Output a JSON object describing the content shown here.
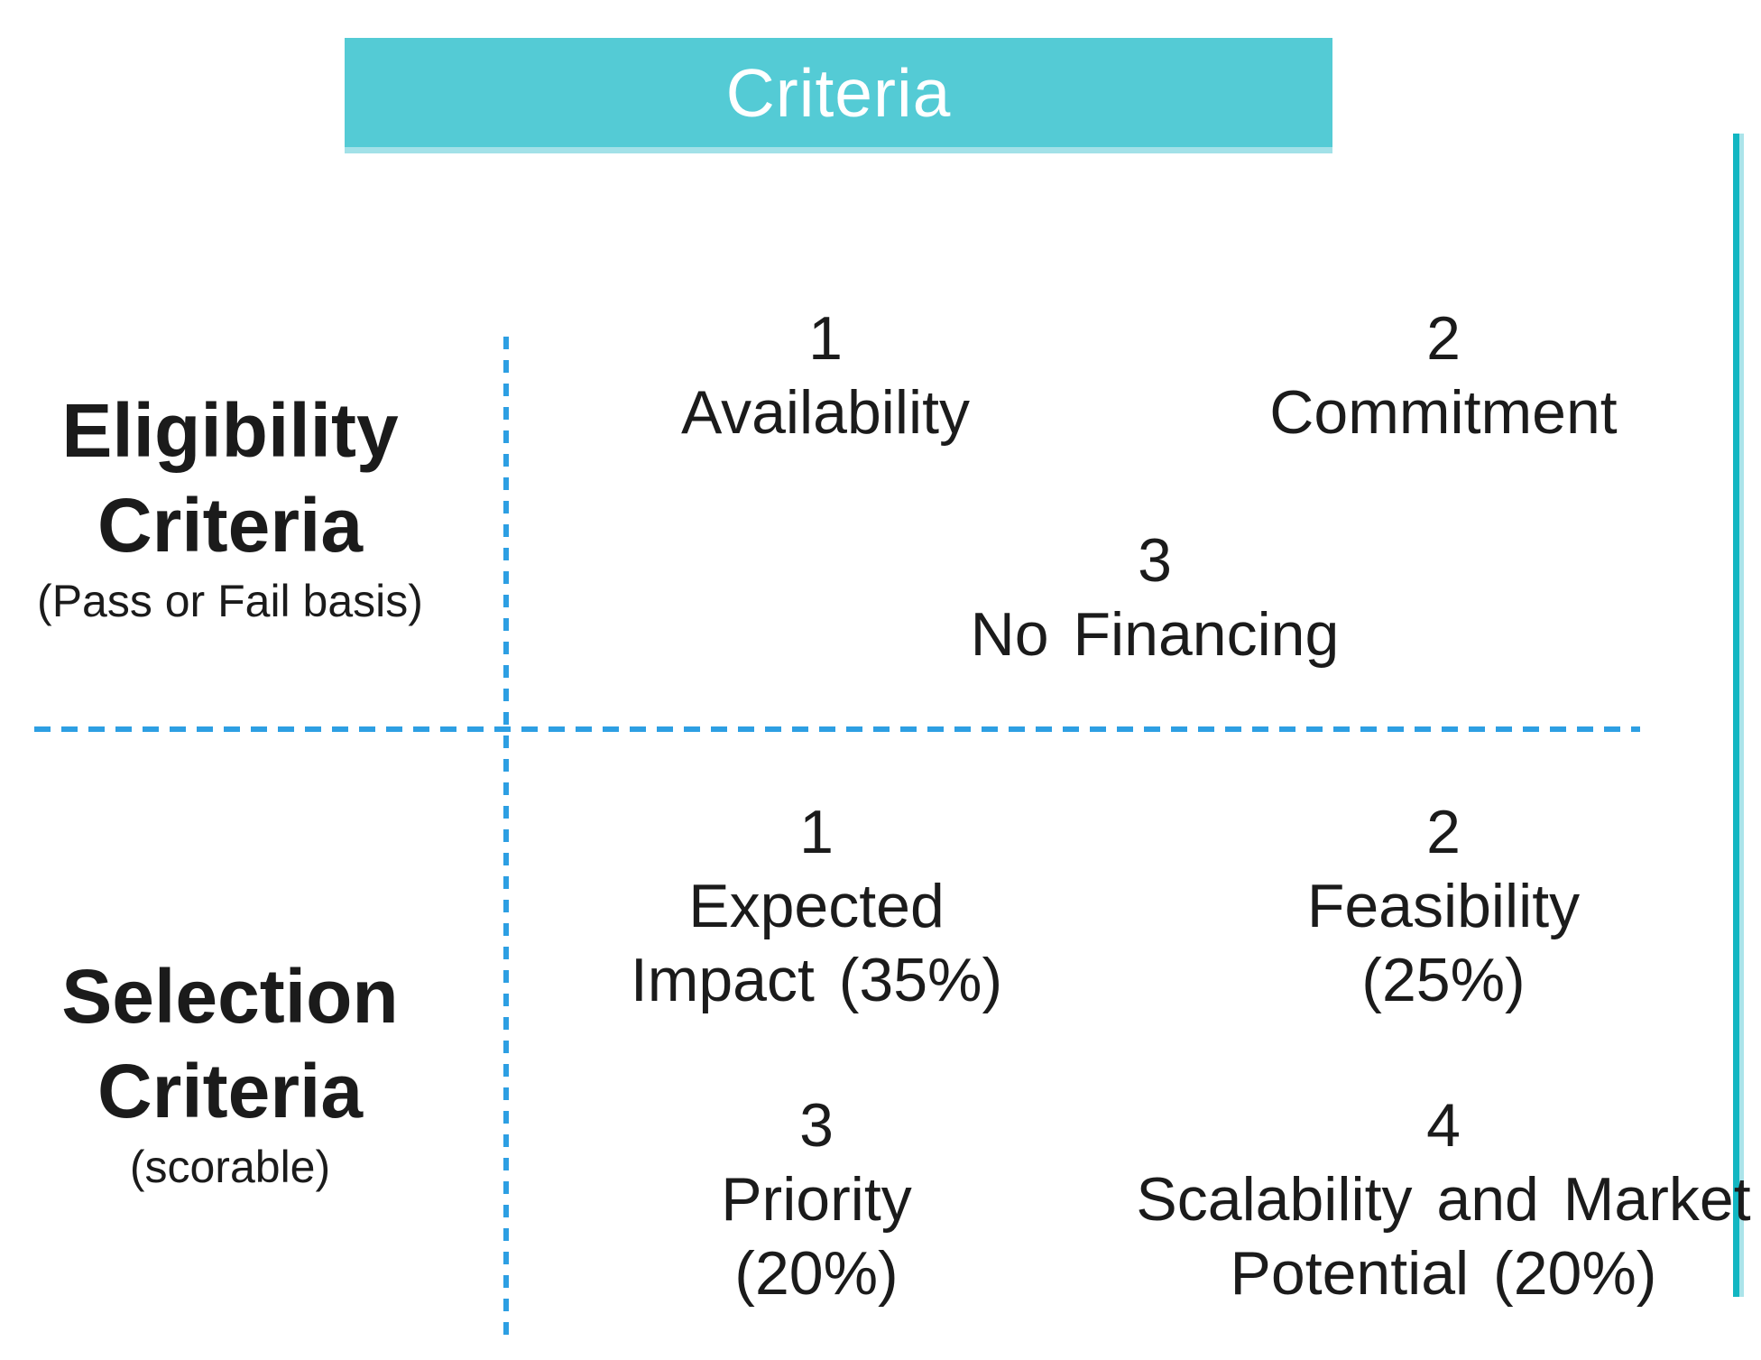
{
  "header": {
    "title": "Criteria"
  },
  "colors": {
    "header_bar": "#54cbd5",
    "accent_line": "#12b6c2",
    "dashed_divider": "#2d9fe3",
    "text": "#1b1b1b"
  },
  "rows": [
    {
      "label": {
        "line1": "Eligibility",
        "line2": "Criteria",
        "note": "(Pass or Fail basis)"
      },
      "items": [
        {
          "number": "1",
          "lines": [
            "Availability"
          ]
        },
        {
          "number": "2",
          "lines": [
            "Commitment"
          ]
        },
        {
          "number": "3",
          "lines": [
            "No Financing"
          ]
        }
      ]
    },
    {
      "label": {
        "line1": "Selection",
        "line2": "Criteria",
        "note": "(scorable)"
      },
      "items": [
        {
          "number": "1",
          "lines": [
            "Expected",
            "Impact (35%)"
          ]
        },
        {
          "number": "2",
          "lines": [
            "Feasibility",
            "(25%)"
          ]
        },
        {
          "number": "3",
          "lines": [
            "Priority",
            "(20%)"
          ]
        },
        {
          "number": "4",
          "lines": [
            "Scalability and Market",
            "Potential (20%)"
          ]
        }
      ]
    }
  ]
}
